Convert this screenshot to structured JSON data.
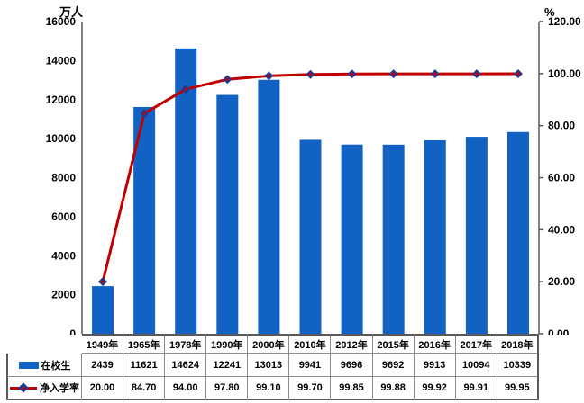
{
  "chart": {
    "left_unit_label": "万人",
    "right_unit_label": "%",
    "left_axis_tick_labels": [
      "0",
      "2000",
      "4000",
      "6000",
      "8000",
      "10000",
      "12000",
      "14000",
      "16000"
    ],
    "right_axis_tick_labels": [
      "0.00",
      "20.00",
      "40.00",
      "60.00",
      "80.00",
      "100.00",
      "120.00"
    ],
    "colors": {
      "bar": "#1262c4",
      "line": "#c00000",
      "marker_diamond": "#223a8f",
      "marker_center": "#c00000",
      "axis": "#595959",
      "table_border": "#8c8c8c",
      "text": "#000000"
    }
  },
  "chart_data": {
    "type": "bar",
    "subtype": "combo-bar-line-with-data-table",
    "title": "",
    "categories": [
      "1949年",
      "1965年",
      "1978年",
      "1990年",
      "2000年",
      "2010年",
      "2012年",
      "2015年",
      "2016年",
      "2017年",
      "2018年"
    ],
    "series": [
      {
        "name": "在校生",
        "type": "bar",
        "axis": "left",
        "values": [
          2439,
          11621,
          14624,
          12241,
          13013,
          9941,
          9696,
          9692,
          9913,
          10094,
          10339
        ],
        "display": [
          "2439",
          "11621",
          "14624",
          "12241",
          "13013",
          "9941",
          "9696",
          "9692",
          "9913",
          "10094",
          "10339"
        ],
        "color": "#1262c4"
      },
      {
        "name": "净入学率",
        "type": "line",
        "axis": "right",
        "values": [
          20.0,
          84.7,
          94.0,
          97.8,
          99.1,
          99.7,
          99.85,
          99.88,
          99.92,
          99.91,
          99.95
        ],
        "display": [
          "20.00",
          "84.70",
          "94.00",
          "97.80",
          "99.10",
          "99.70",
          "99.85",
          "99.88",
          "99.92",
          "99.91",
          "99.95"
        ],
        "color": "#c00000"
      }
    ],
    "left_ylabel": "万人",
    "right_ylabel": "%",
    "left_ylim": [
      0,
      16000
    ],
    "left_ytick_step": 2000,
    "right_ylim": [
      0,
      120
    ],
    "right_ytick_step": 20,
    "grid": false,
    "legend_position": "data-table-left",
    "data_table_shown": true
  }
}
